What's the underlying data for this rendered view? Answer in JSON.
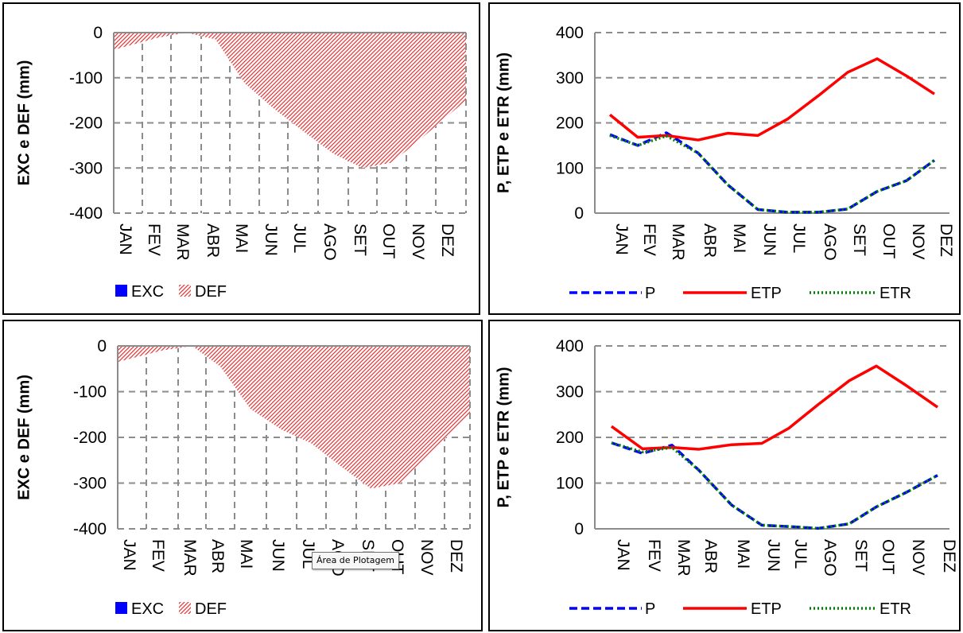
{
  "tooltip": "Área de Plotagem",
  "chart_data": [
    {
      "type": "area",
      "ylabel": "EXC e DEF (mm)",
      "ylim": [
        -400,
        0
      ],
      "yticks": [
        0,
        -100,
        -200,
        -300,
        -400
      ],
      "categories": [
        "JAN",
        "FEV",
        "MAR",
        "ABR",
        "MAI",
        "JUN",
        "JUL",
        "AGO",
        "SET",
        "OUT",
        "NOV",
        "DEZ"
      ],
      "series": [
        {
          "name": "EXC",
          "color": "#0000ff",
          "values": [
            0,
            0,
            0,
            0,
            0,
            0,
            0,
            0,
            0,
            0,
            0,
            0
          ]
        },
        {
          "name": "DEF",
          "color": "#e03c3c",
          "pattern": "diagonal-hatch",
          "values": [
            -38,
            -12,
            0,
            -15,
            -112,
            -168,
            -218,
            -268,
            -300,
            -288,
            -235,
            -150
          ]
        }
      ],
      "legend": "bottom-left"
    },
    {
      "type": "line",
      "ylabel": "P, ETP e ETR (mm)",
      "ylim": [
        0,
        400
      ],
      "yticks": [
        400,
        300,
        200,
        100,
        0
      ],
      "categories": [
        "JAN",
        "FEV",
        "MAR",
        "ABR",
        "MAI",
        "JUN",
        "JUL",
        "AGO",
        "SET",
        "OUT",
        "NOV",
        "DEZ"
      ],
      "series": [
        {
          "name": "P",
          "color": "#0000ff",
          "style": "dashed",
          "values": [
            174,
            150,
            178,
            133,
            63,
            8,
            2,
            2,
            9,
            48,
            72,
            117
          ]
        },
        {
          "name": "ETP",
          "color": "#ff0000",
          "style": "solid",
          "values": [
            218,
            168,
            172,
            162,
            177,
            172,
            208,
            260,
            312,
            342,
            304,
            264
          ]
        },
        {
          "name": "ETR",
          "color": "#008000",
          "style": "dotted",
          "values": [
            172,
            150,
            171,
            133,
            63,
            8,
            2,
            2,
            9,
            48,
            72,
            117
          ]
        }
      ],
      "legend": "bottom"
    },
    {
      "type": "area",
      "ylabel": "EXC e DEF (mm)",
      "ylim": [
        -400,
        0
      ],
      "yticks": [
        0,
        -100,
        -200,
        -300,
        -400
      ],
      "categories": [
        "JAN",
        "FEV",
        "MAR",
        "ABR",
        "MAI",
        "JUN",
        "JUL",
        "AGO",
        "SET",
        "OUT",
        "NOV",
        "DEZ"
      ],
      "series": [
        {
          "name": "EXC",
          "color": "#0000ff",
          "values": [
            0,
            0,
            0,
            0,
            0,
            0,
            0,
            0,
            0,
            0,
            0,
            0
          ]
        },
        {
          "name": "DEF",
          "color": "#e03c3c",
          "pattern": "diagonal-hatch",
          "values": [
            -35,
            -10,
            0,
            -45,
            -138,
            -183,
            -213,
            -264,
            -312,
            -300,
            -235,
            -148
          ]
        }
      ],
      "legend": "bottom-left"
    },
    {
      "type": "line",
      "ylabel": "P, ETP e ETR (mm)",
      "ylim": [
        0,
        400
      ],
      "yticks": [
        400,
        300,
        200,
        100,
        0
      ],
      "categories": [
        "JAN",
        "FEV",
        "MAR",
        "ABR",
        "MAI",
        "JUN",
        "JUL",
        "AGO",
        "SET",
        "OUT",
        "NOV",
        "DEZ"
      ],
      "series": [
        {
          "name": "P",
          "color": "#0000ff",
          "style": "dashed",
          "values": [
            188,
            165,
            183,
            128,
            52,
            8,
            5,
            1,
            11,
            48,
            80,
            117
          ]
        },
        {
          "name": "ETP",
          "color": "#ff0000",
          "style": "solid",
          "values": [
            224,
            175,
            178,
            174,
            184,
            187,
            220,
            272,
            324,
            356,
            313,
            266
          ]
        },
        {
          "name": "ETR",
          "color": "#008000",
          "style": "dotted",
          "values": [
            188,
            168,
            178,
            128,
            52,
            8,
            5,
            1,
            11,
            48,
            80,
            117
          ]
        }
      ],
      "legend": "bottom"
    }
  ]
}
